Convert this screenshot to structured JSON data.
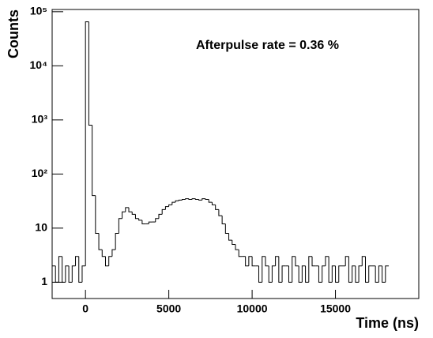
{
  "chart_data": {
    "type": "histogram",
    "annotation": "Afterpulse rate = 0.36 %",
    "x_label": "Time (ns)",
    "y_label": "Counts",
    "log_y": true,
    "grid": false,
    "color": "#000000",
    "xlim": [
      -2000,
      20000
    ],
    "ylim": [
      0.5,
      110000
    ],
    "xticks": [
      0,
      5000,
      10000,
      15000
    ],
    "yticks": [
      1,
      10,
      {
        "value": 100,
        "label": "10²"
      },
      {
        "value": 1000,
        "label": "10³"
      },
      {
        "value": 10000,
        "label": "10⁴"
      },
      {
        "value": 100000,
        "label": "10⁵"
      }
    ],
    "bins": [
      -2000,
      -1800,
      -1600,
      -1400,
      -1200,
      -1000,
      -800,
      -600,
      -400,
      -200,
      0,
      200,
      400,
      600,
      800,
      1000,
      1200,
      1400,
      1600,
      1800,
      2000,
      2200,
      2400,
      2600,
      2800,
      3000,
      3200,
      3400,
      3600,
      3800,
      4000,
      4200,
      4400,
      4600,
      4800,
      5000,
      5200,
      5400,
      5600,
      5800,
      6000,
      6200,
      6400,
      6600,
      6800,
      7000,
      7200,
      7400,
      7600,
      7800,
      8000,
      8200,
      8400,
      8600,
      8800,
      9000,
      9200,
      9400,
      9600,
      9800,
      10000,
      10200,
      10400,
      10600,
      10800,
      11000,
      11200,
      11400,
      11600,
      11800,
      12000,
      12200,
      12400,
      12600,
      12800,
      13000,
      13200,
      13400,
      13600,
      13800,
      14000,
      14200,
      14400,
      14600,
      14800,
      15000,
      15200,
      15400,
      15600,
      15800,
      16000,
      16200,
      16400,
      16600,
      16800,
      17000,
      17200,
      17400,
      17600,
      17800,
      18000,
      18200
    ],
    "values": [
      2,
      1,
      3,
      1,
      2,
      1,
      2,
      3,
      1,
      2,
      65000,
      800,
      40,
      8,
      4,
      3,
      2,
      3,
      4,
      8,
      15,
      20,
      24,
      20,
      18,
      15,
      14,
      12,
      12,
      13,
      13,
      15,
      18,
      22,
      25,
      27,
      30,
      32,
      33,
      34,
      35,
      34,
      35,
      34,
      33,
      35,
      34,
      30,
      27,
      22,
      17,
      12,
      8,
      6,
      5,
      4,
      3,
      3,
      2,
      3,
      2,
      2,
      1,
      3,
      2,
      1,
      2,
      3,
      1,
      2,
      2,
      1,
      3,
      2,
      1,
      2,
      1,
      3,
      2,
      2,
      1,
      2,
      3,
      1,
      2,
      1,
      2,
      2,
      3,
      1,
      2,
      1,
      2,
      3,
      1,
      2,
      2,
      1,
      2,
      1,
      2
    ]
  }
}
